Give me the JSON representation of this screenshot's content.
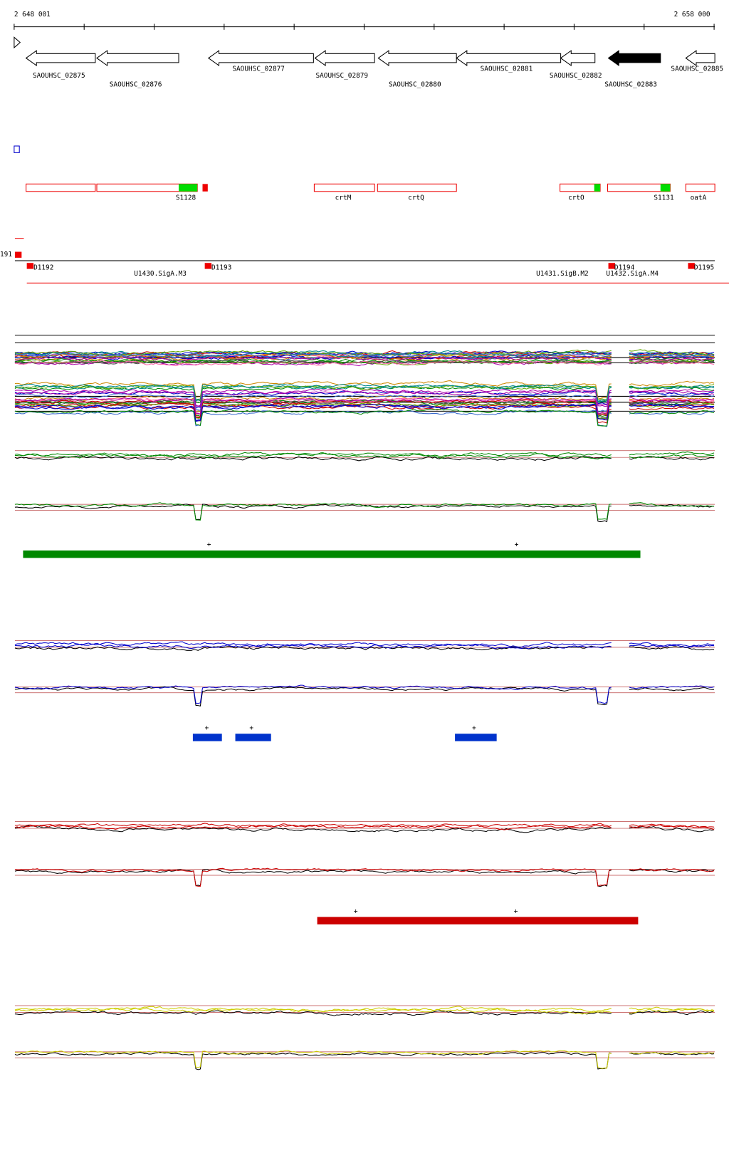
{
  "ruler": {
    "start": "2 648 001",
    "end": "2 658 000"
  },
  "genes": [
    "SAOUHSC_02875",
    "SAOUHSC_02876",
    "SAOUHSC_02877",
    "SAOUHSC_02879",
    "SAOUHSC_02880",
    "SAOUHSC_02881",
    "SAOUHSC_02882",
    "SAOUHSC_02883",
    "SAOUHSC_02885"
  ],
  "features": [
    "S1128",
    "crtM",
    "crtQ",
    "crtO",
    "S1131",
    "oatA"
  ],
  "operons": [
    "191",
    "D1192",
    "U1430.SigA.M3",
    "D1193",
    "U1431.SigB.M2",
    "D1194",
    "U1432.SigA.M4",
    "D1195"
  ],
  "strand_marks": [
    "+",
    "+",
    "+",
    "+",
    "+",
    "+",
    "+"
  ]
}
